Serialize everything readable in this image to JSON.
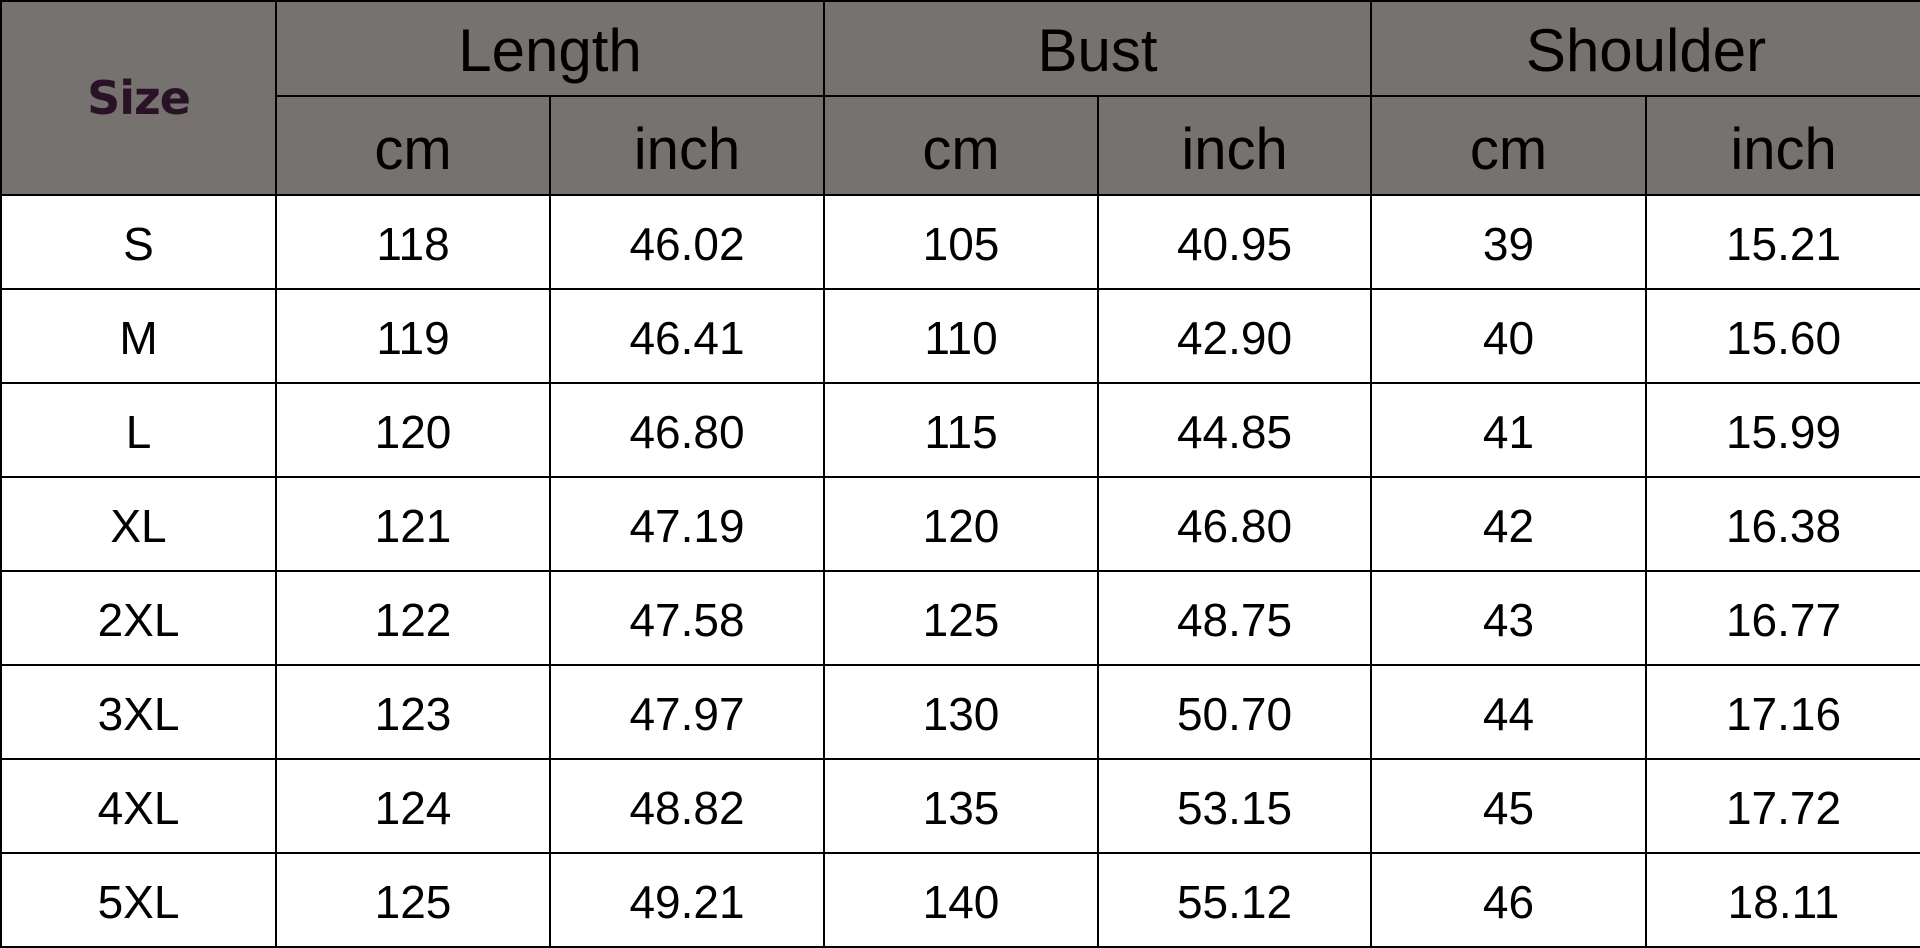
{
  "header": {
    "size_label": "Size",
    "groups": [
      "Length",
      "Bust",
      "Shoulder"
    ],
    "units": [
      "cm",
      "inch",
      "cm",
      "inch",
      "cm",
      "inch"
    ]
  },
  "rows": [
    [
      "S",
      "118",
      "46.02",
      "105",
      "40.95",
      "39",
      "15.21"
    ],
    [
      "M",
      "119",
      "46.41",
      "110",
      "42.90",
      "40",
      "15.60"
    ],
    [
      "L",
      "120",
      "46.80",
      "115",
      "44.85",
      "41",
      "15.99"
    ],
    [
      "XL",
      "121",
      "47.19",
      "120",
      "46.80",
      "42",
      "16.38"
    ],
    [
      "2XL",
      "122",
      "47.58",
      "125",
      "48.75",
      "43",
      "16.77"
    ],
    [
      "3XL",
      "123",
      "47.97",
      "130",
      "50.70",
      "44",
      "17.16"
    ],
    [
      "4XL",
      "124",
      "48.82",
      "135",
      "53.15",
      "45",
      "17.72"
    ],
    [
      "5XL",
      "125",
      "49.21",
      "140",
      "55.12",
      "46",
      "18.11"
    ]
  ],
  "colors": {
    "header_bg": "#767270",
    "size_text": "#2a1226"
  }
}
